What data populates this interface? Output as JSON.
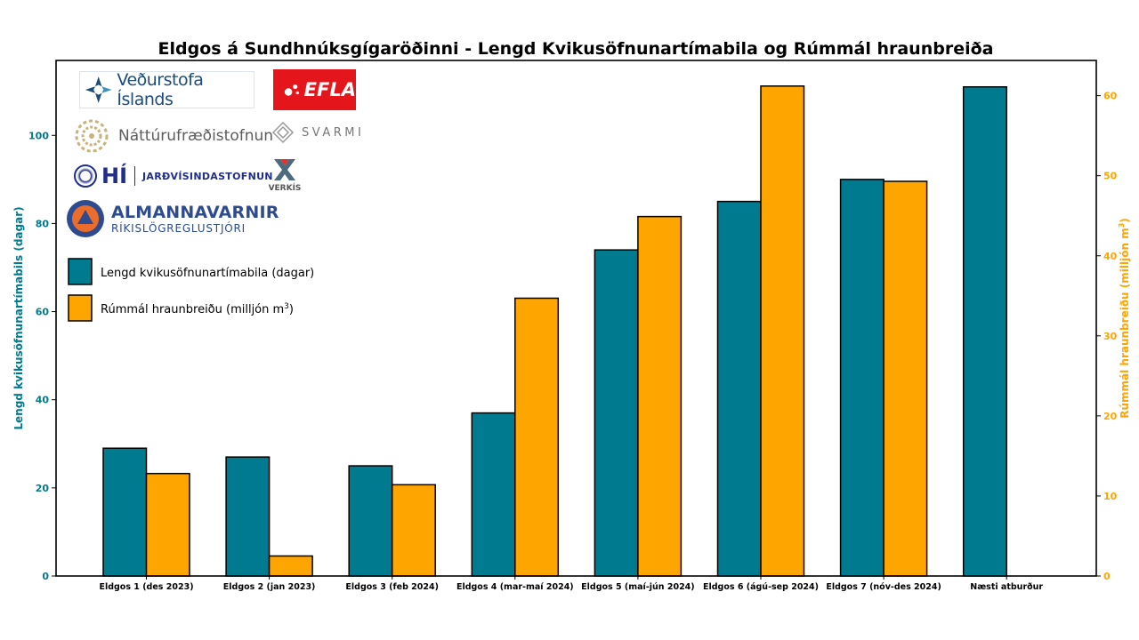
{
  "chart_data": {
    "type": "bar",
    "title": "Eldgos á Sundhnúksgígaröðinni - Lengd Kvikusöfnunartímabila og Rúmmál hraunbreiða",
    "categories": [
      "Eldgos 1 (des 2023)",
      "Eldgos 2 (jan 2023)",
      "Eldgos 3 (feb 2024)",
      "Eldgos 4 (mar-maí 2024)",
      "Eldgos 5 (maí-jún 2024)",
      "Eldgos 6 (ágú-sep 2024)",
      "Eldgos 7 (nóv-des 2024)",
      "Næsti atburður"
    ],
    "series": [
      {
        "name": "Lengd kvikusöfnunartímabila (dagar)",
        "axis": "left",
        "color": "#007a8f",
        "values": [
          29,
          27,
          25,
          37,
          74,
          85,
          90,
          111
        ]
      },
      {
        "name": "Rúmmál hraunbreiðu (milljón m³)",
        "axis": "right",
        "color": "#ffa500",
        "values": [
          12.8,
          2.5,
          11.4,
          34.7,
          44.9,
          61.2,
          49.3,
          null
        ]
      }
    ],
    "ylabel_left": "Lengd kvikusöfnunartímabils (dagar)",
    "ylabel_right": "Rúmmál hraunbreiðu (milljón m³)",
    "ylim_left": [
      0,
      117
    ],
    "ylim_right": [
      0,
      64.4
    ],
    "yticks_left": [
      0,
      20,
      40,
      60,
      80,
      100
    ],
    "yticks_right": [
      0,
      10,
      20,
      30,
      40,
      50,
      60
    ],
    "left_axis_color": "#007a8f",
    "right_axis_color": "#ffa500",
    "grid": false,
    "legend_placement": "upper-left"
  },
  "logos": {
    "vedur": "Veðurstofa Íslands",
    "efla": "EFLA",
    "natt": "Náttúrufræðistofnun",
    "svarmi": "SVARMI",
    "hi_mark": "HÍ",
    "hi_sub": "JARÐVÍSINDASTOFNUN",
    "verkis": "VERKÍS",
    "almanna_1": "ALMANNAVARNIR",
    "almanna_2": "RÍKISLÖGREGLUSTJÓRI"
  }
}
